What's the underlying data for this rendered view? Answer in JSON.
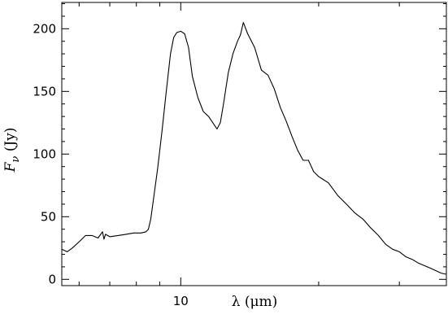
{
  "chart_data": {
    "type": "line",
    "title": "",
    "xlabel": "λ (μm)",
    "ylabel": "F_ν (Jy)",
    "xscale": "log",
    "xlim": [
      5.5,
      38
    ],
    "ylim": [
      -5,
      221
    ],
    "xticks": [
      10
    ],
    "xtick_labels": [
      "10"
    ],
    "yticks": [
      0,
      50,
      100,
      150,
      200
    ],
    "ytick_labels": [
      "0",
      "50",
      "100",
      "150",
      "200"
    ],
    "grid": false,
    "legend": "none",
    "series": [
      {
        "color": "#000000",
        "x": [
          5.5,
          5.65,
          5.8,
          6.0,
          6.2,
          6.4,
          6.6,
          6.75,
          6.8,
          6.85,
          7.0,
          7.3,
          7.6,
          7.9,
          8.2,
          8.4,
          8.5,
          8.6,
          8.75,
          8.9,
          9.1,
          9.3,
          9.5,
          9.65,
          9.8,
          10.0,
          10.2,
          10.4,
          10.6,
          10.9,
          11.2,
          11.5,
          11.8,
          12.0,
          12.2,
          12.4,
          12.7,
          13.0,
          13.3,
          13.5,
          13.7,
          14.0,
          14.5,
          15.0,
          15.5,
          16.0,
          16.5,
          17.0,
          17.5,
          18.0,
          18.5,
          19.0,
          19.5,
          20.0,
          21.0,
          22.0,
          23.0,
          24.0,
          25.0,
          26.0,
          27.0,
          28.0,
          29.0,
          30.0,
          31.0,
          32.0,
          33.0,
          34.0,
          35.0,
          36.0,
          37.0,
          38.0
        ],
        "y": [
          24,
          22,
          25,
          30,
          35,
          35,
          33,
          38,
          32,
          36,
          34,
          35,
          36,
          37,
          37,
          38,
          40,
          48,
          68,
          88,
          118,
          150,
          180,
          193,
          197,
          198,
          196,
          185,
          162,
          145,
          134,
          130,
          124,
          120,
          125,
          140,
          165,
          180,
          190,
          195,
          205,
          196,
          185,
          167,
          163,
          152,
          137,
          126,
          114,
          103,
          95,
          95,
          86,
          82,
          77,
          67,
          60,
          53,
          48,
          41,
          35,
          28,
          24,
          22,
          18,
          16,
          13,
          11,
          9,
          7,
          5,
          4
        ]
      }
    ]
  }
}
